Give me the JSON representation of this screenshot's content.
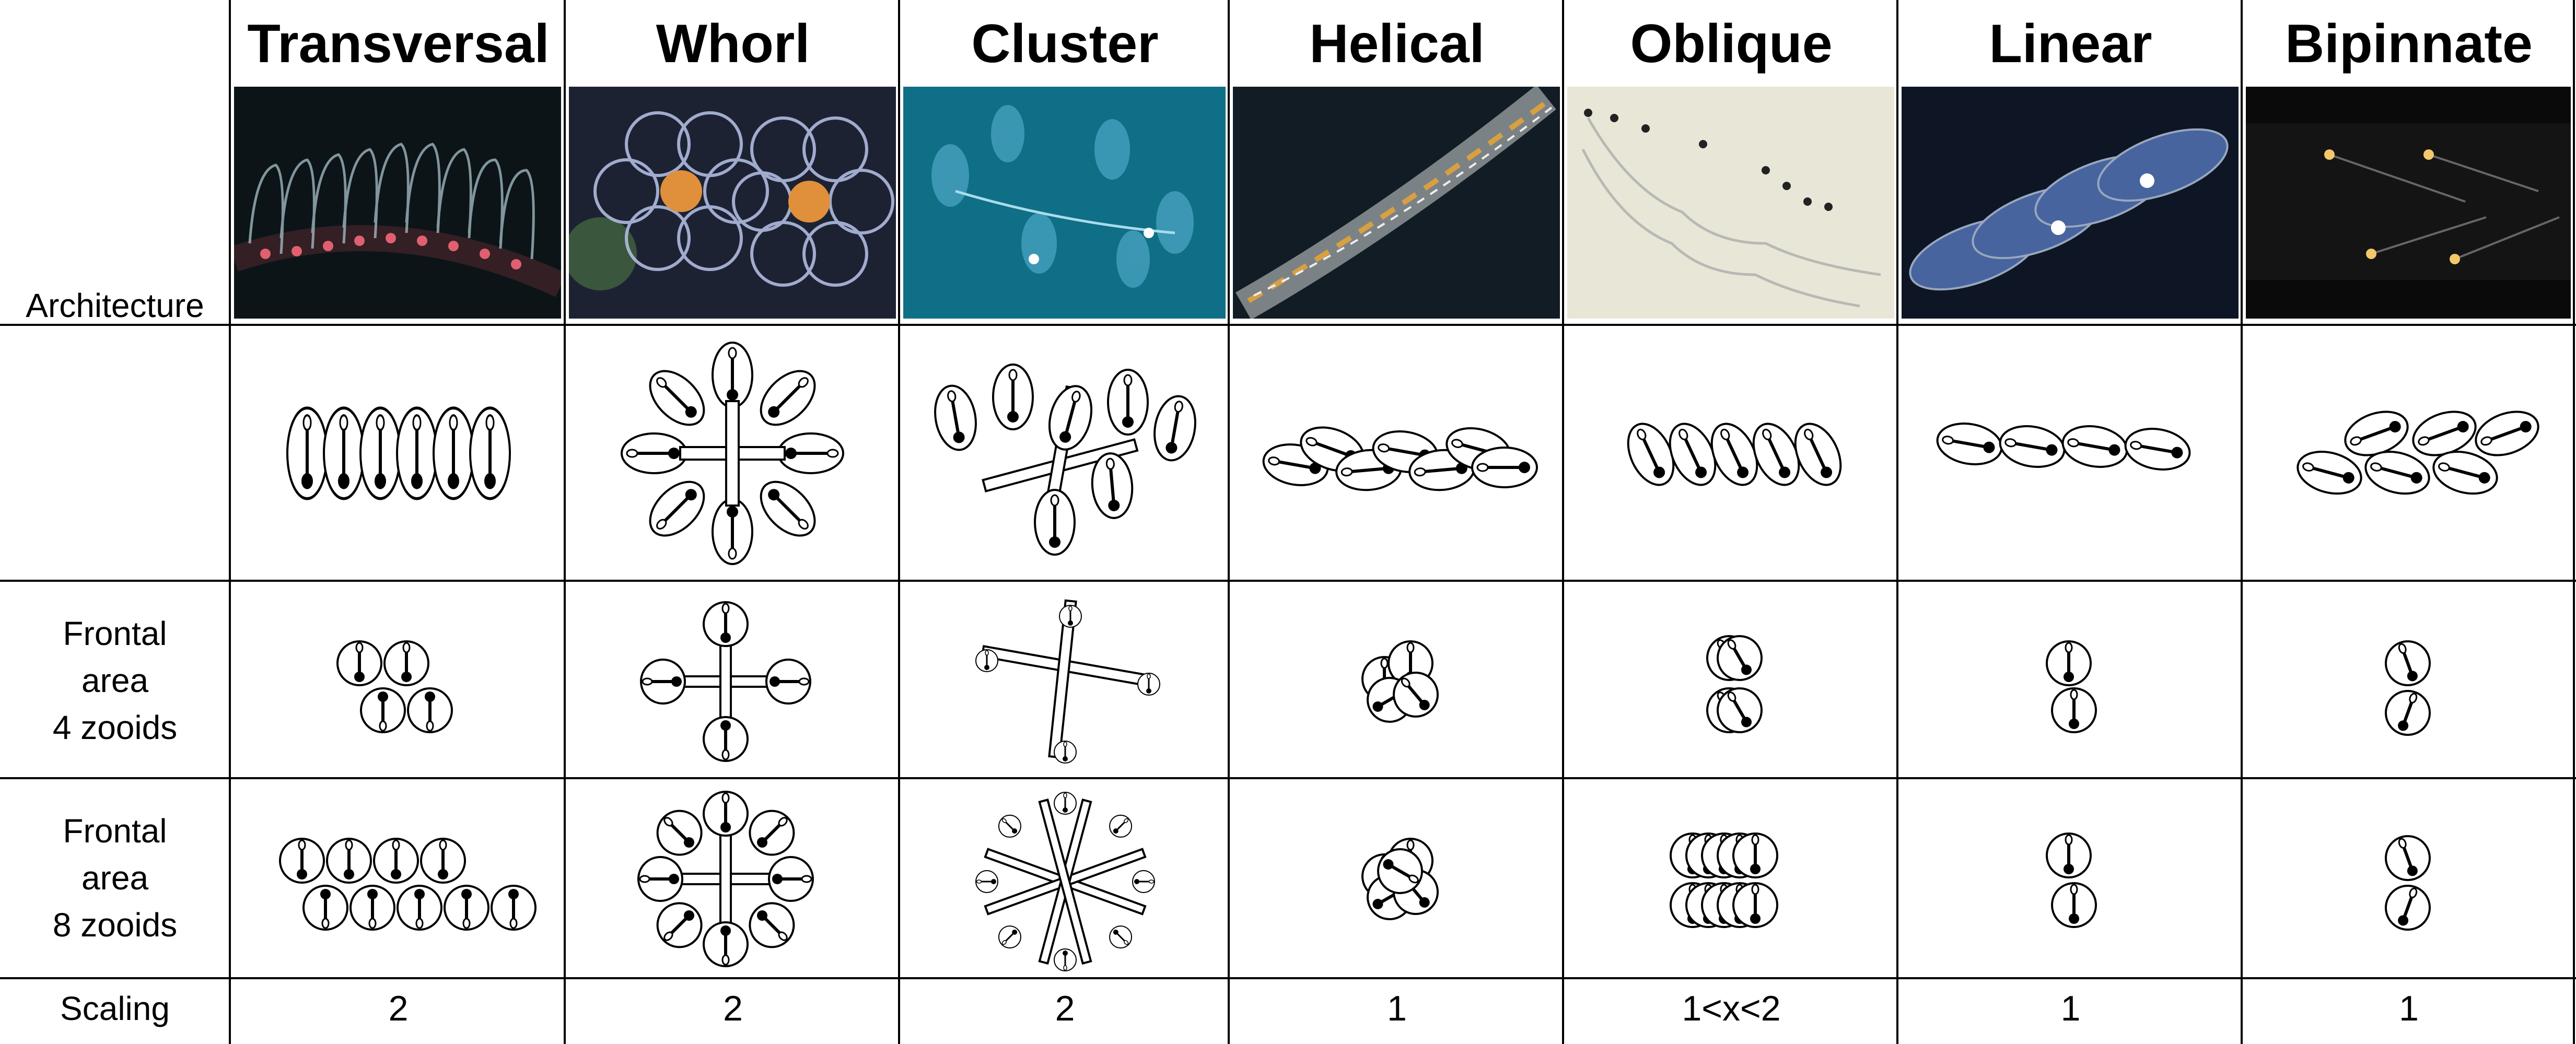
{
  "row_labels": {
    "architecture": "Architecture",
    "frontal4": [
      "Frontal",
      "area",
      "4 zooids"
    ],
    "frontal8": [
      "Frontal",
      "area",
      "8 zooids"
    ],
    "scaling": "Scaling"
  },
  "columns": [
    {
      "name": "Transversal",
      "scaling": "2"
    },
    {
      "name": "Whorl",
      "scaling": "2"
    },
    {
      "name": "Cluster",
      "scaling": "2"
    },
    {
      "name": "Helical",
      "scaling": "1"
    },
    {
      "name": "Oblique",
      "scaling": "1<x<2"
    },
    {
      "name": "Linear",
      "scaling": "1"
    },
    {
      "name": "Bipinnate",
      "scaling": "1"
    }
  ],
  "photo_colors": [
    "#0c1418",
    "#1d2233",
    "#0f6f86",
    "#121c24",
    "#e8e6d6",
    "#0e1626",
    "#0a0a0a"
  ]
}
